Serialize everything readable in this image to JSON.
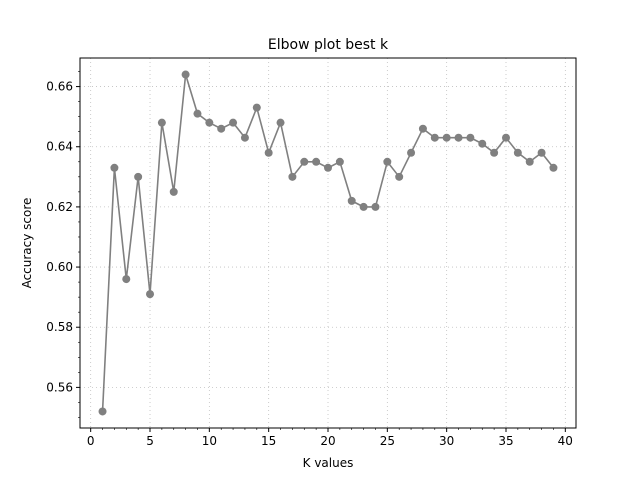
{
  "chart_data": {
    "type": "line",
    "title": "Elbow plot best k",
    "xlabel": "K values",
    "ylabel": "Accuracy score",
    "xlim": [
      -0.9,
      40.9
    ],
    "ylim": [
      0.5465,
      0.6695
    ],
    "xticks": [
      0,
      5,
      10,
      15,
      20,
      25,
      30,
      35,
      40
    ],
    "yticks": [
      0.56,
      0.58,
      0.6,
      0.62,
      0.64,
      0.66
    ],
    "ytick_labels": [
      "0.56",
      "0.58",
      "0.60",
      "0.62",
      "0.64",
      "0.66"
    ],
    "grid": true,
    "grid_style": "dotted",
    "line_color": "#808080",
    "marker": "circle",
    "series": [
      {
        "x": [
          1,
          2,
          3,
          4,
          5,
          6,
          7,
          8,
          9,
          10,
          11,
          12,
          13,
          14,
          15,
          16,
          17,
          18,
          19,
          20,
          21,
          22,
          23,
          24,
          25,
          26,
          27,
          28,
          29,
          30,
          31,
          32,
          33,
          34,
          35,
          36,
          37,
          38,
          39
        ],
        "values": [
          0.552,
          0.633,
          0.596,
          0.63,
          0.591,
          0.648,
          0.625,
          0.664,
          0.651,
          0.648,
          0.646,
          0.648,
          0.643,
          0.653,
          0.638,
          0.648,
          0.63,
          0.635,
          0.635,
          0.633,
          0.635,
          0.622,
          0.62,
          0.62,
          0.635,
          0.63,
          0.638,
          0.646,
          0.643,
          0.643,
          0.643,
          0.643,
          0.641,
          0.638,
          0.643,
          0.638,
          0.635,
          0.638,
          0.633
        ]
      }
    ]
  }
}
